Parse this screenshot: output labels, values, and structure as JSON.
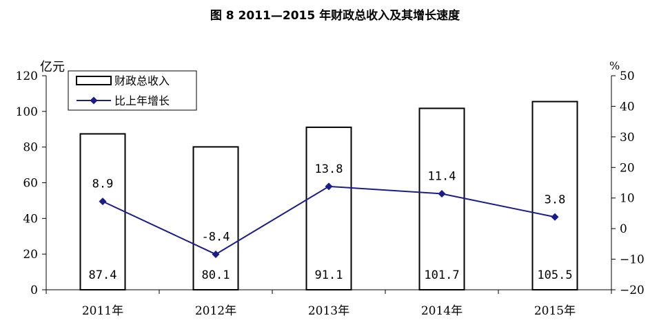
{
  "chart_data": {
    "type": "bar",
    "title": "图 8  2011—2015 年财政总收入及其增长速度",
    "categories": [
      "2011年",
      "2012年",
      "2013年",
      "2014年",
      "2015年"
    ],
    "series": [
      {
        "name": "财政总收入",
        "type": "bar",
        "axis": "left",
        "values": [
          87.4,
          80.1,
          91.1,
          101.7,
          105.5
        ]
      },
      {
        "name": "比上年增长",
        "type": "line",
        "axis": "right",
        "values": [
          8.9,
          -8.4,
          13.8,
          11.4,
          3.8
        ]
      }
    ],
    "y_left": {
      "label": "亿元",
      "ylim": [
        0,
        120
      ],
      "ticks": [
        "0",
        "20",
        "40",
        "60",
        "80",
        "100",
        "120"
      ]
    },
    "y_right": {
      "label": "%",
      "ylim": [
        -20,
        50
      ],
      "ticks": [
        "−20",
        "−10",
        "0",
        "10",
        "20",
        "30",
        "40",
        "50"
      ]
    },
    "bar_labels": [
      "87.4",
      "80.1",
      "91.1",
      "101.7",
      "105.5"
    ],
    "line_labels": [
      "8.9",
      "-8.4",
      "13.8",
      "11.4",
      "3.8"
    ],
    "legend": {
      "position": "top-left",
      "entries": [
        "财政总收入",
        "比上年增长"
      ]
    },
    "grid": false,
    "colors": {
      "bar_fill": "#ffffff",
      "bar_stroke": "#000000",
      "line": "#1b1b8a",
      "marker": "#1b1b8a"
    }
  }
}
